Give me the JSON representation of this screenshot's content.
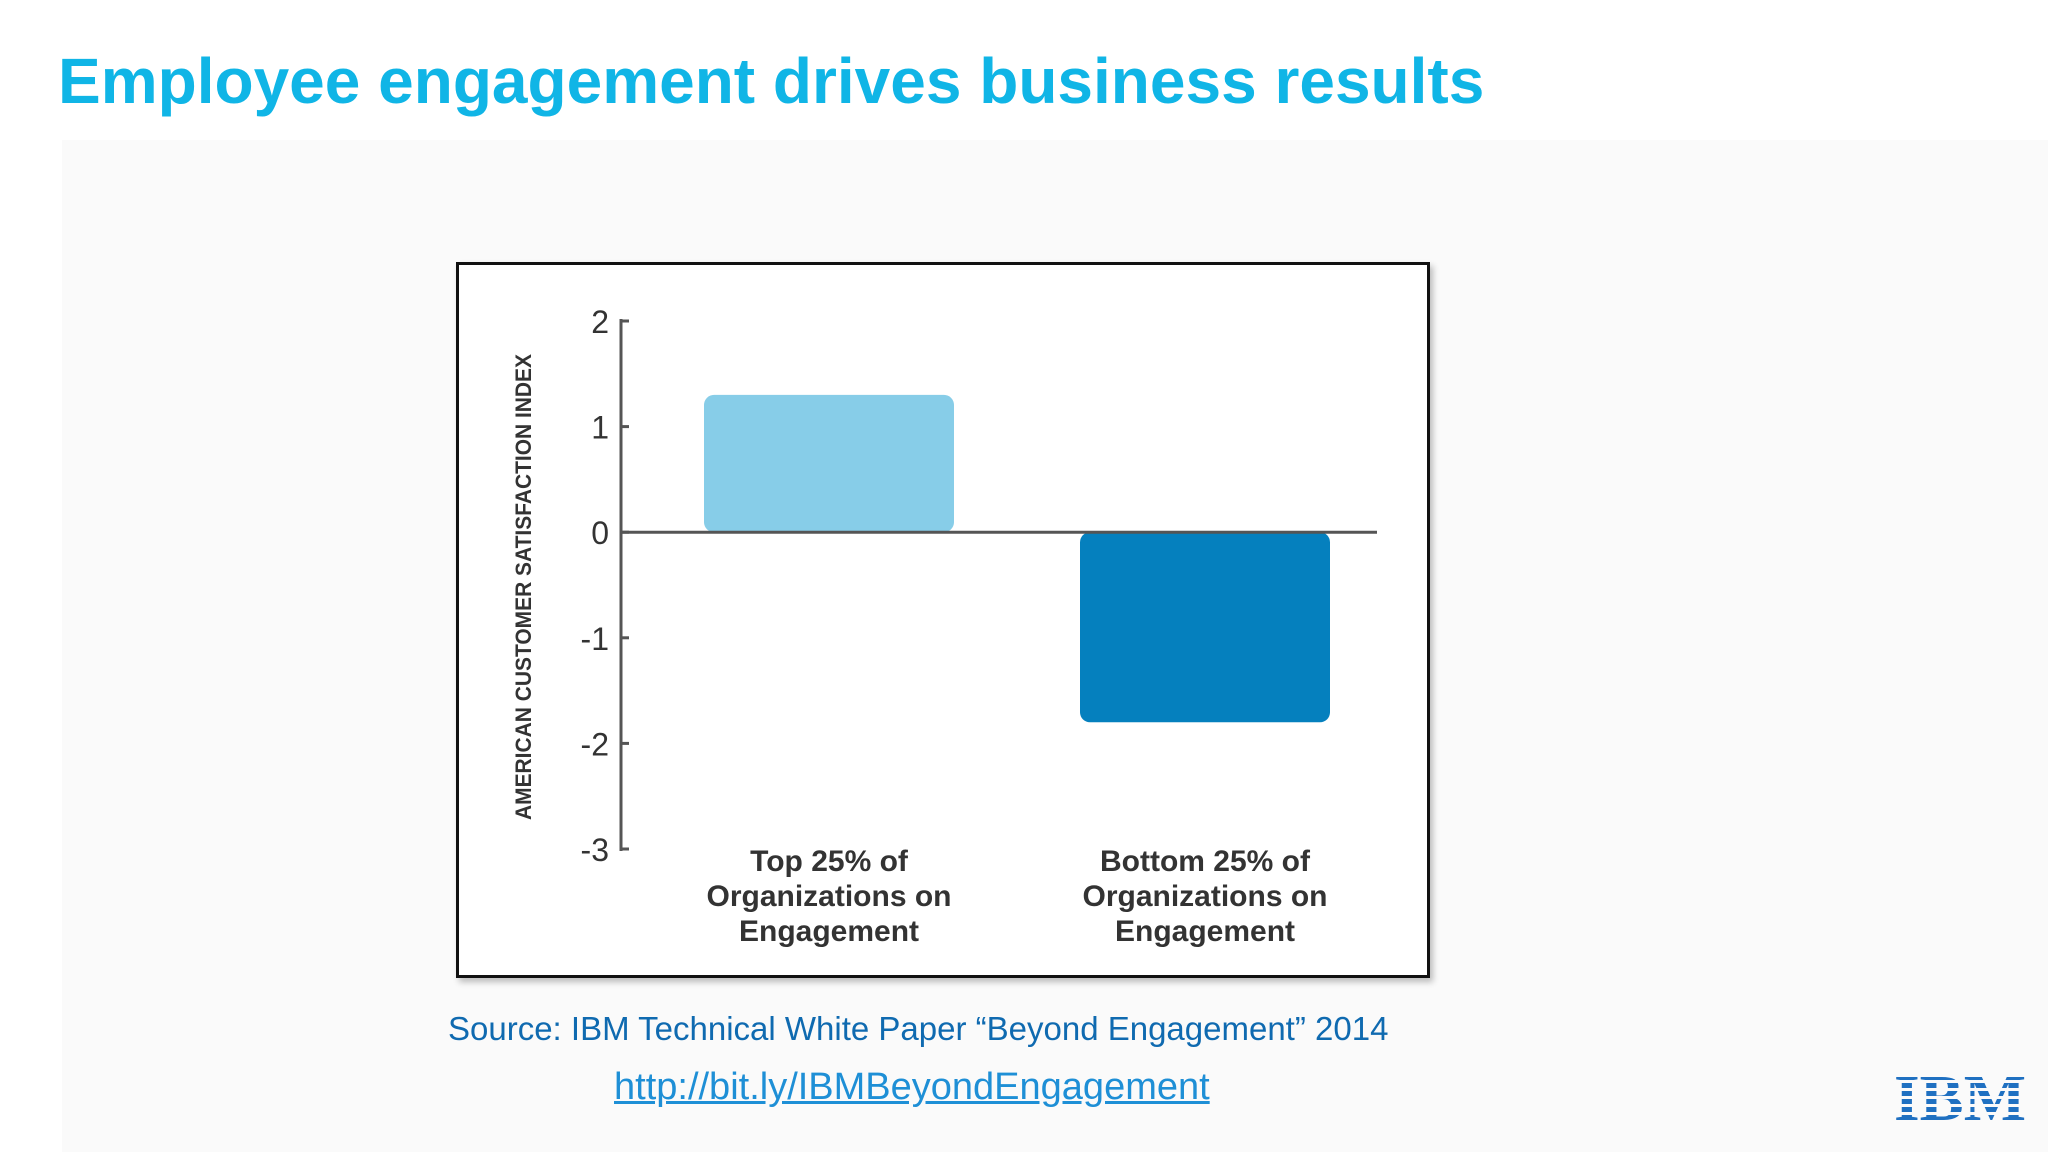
{
  "slide": {
    "title": "Employee engagement drives business results",
    "source": "Source: IBM Technical White Paper “Beyond Engagement” 2014",
    "link": "http://bit.ly/IBMBeyondEngagement",
    "logo_text": "IBM"
  },
  "colors": {
    "title": "#10b5e6",
    "bar_top": "#87cde8",
    "bar_bottom": "#0580be",
    "source": "#0f6ab0",
    "link": "#1e8fd6",
    "logo": "#1f70c1"
  },
  "chart_data": {
    "type": "bar",
    "title": "",
    "xlabel": "",
    "ylabel": "AMERICAN CUSTOMER SATISFACTION INDEX",
    "ylim": [
      -3,
      2
    ],
    "yticks": [
      "2",
      "1",
      "0",
      "-1",
      "-2",
      "-3"
    ],
    "ytick_values": [
      2,
      1,
      0,
      -1,
      -2,
      -3
    ],
    "categories": [
      [
        "Top 25% of",
        "Organizations on",
        "Engagement"
      ],
      [
        "Bottom 25% of",
        "Organizations on",
        "Engagement"
      ]
    ],
    "values": [
      1.3,
      -1.8
    ],
    "bar_colors": [
      "#87cde8",
      "#0580be"
    ],
    "grid": false,
    "legend": "none"
  }
}
